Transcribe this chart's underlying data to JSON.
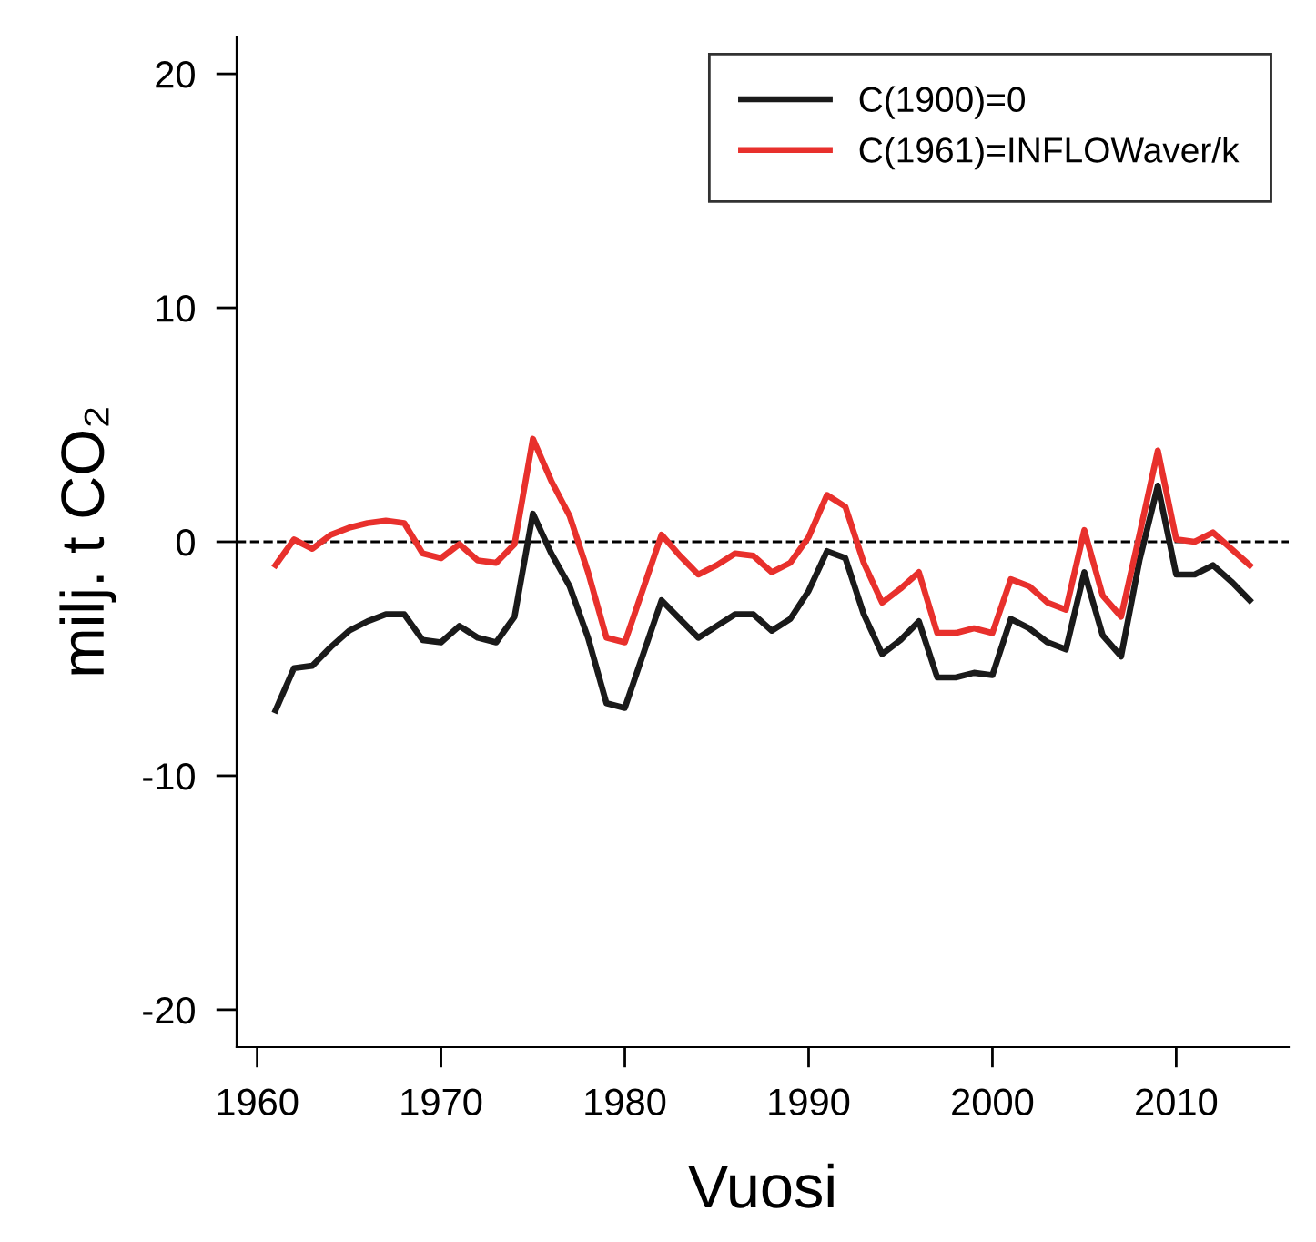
{
  "chart_data": {
    "type": "line",
    "xlabel": "Vuosi",
    "ylabel": "milj. t CO₂",
    "x": [
      1961,
      1962,
      1963,
      1964,
      1965,
      1966,
      1967,
      1968,
      1969,
      1970,
      1971,
      1972,
      1973,
      1974,
      1975,
      1976,
      1977,
      1978,
      1979,
      1980,
      1981,
      1982,
      1983,
      1984,
      1985,
      1986,
      1987,
      1988,
      1989,
      1990,
      1991,
      1992,
      1993,
      1994,
      1995,
      1996,
      1997,
      1998,
      1999,
      2000,
      2001,
      2002,
      2003,
      2004,
      2005,
      2006,
      2007,
      2008,
      2009,
      2010,
      2011,
      2012,
      2013,
      2014
    ],
    "series": [
      {
        "name": "C(1900)=0",
        "color": "#1a1a1a",
        "values": [
          -7.2,
          -5.4,
          -5.3,
          -4.5,
          -3.8,
          -3.4,
          -3.1,
          -3.1,
          -4.2,
          -4.3,
          -3.6,
          -4.1,
          -4.3,
          -3.2,
          1.2,
          -0.5,
          -1.9,
          -4.1,
          -6.9,
          -7.1,
          -4.8,
          -2.5,
          -3.3,
          -4.1,
          -3.6,
          -3.1,
          -3.1,
          -3.8,
          -3.3,
          -2.1,
          -0.4,
          -0.7,
          -3.1,
          -4.8,
          -4.2,
          -3.4,
          -5.8,
          -5.8,
          -5.6,
          -5.7,
          -3.3,
          -3.7,
          -4.3,
          -4.6,
          -1.3,
          -4.0,
          -4.9,
          -0.8,
          2.4,
          -1.4,
          -1.4,
          -1.0,
          -1.7,
          -2.5
        ]
      },
      {
        "name": "C(1961)=INFLOWaver/k",
        "color": "#e8302c",
        "values": [
          -1.0,
          0.1,
          -0.3,
          0.3,
          0.6,
          0.8,
          0.9,
          0.8,
          -0.5,
          -0.7,
          -0.1,
          -0.8,
          -0.9,
          -0.1,
          4.4,
          2.6,
          1.1,
          -1.3,
          -4.1,
          -4.3,
          -2.0,
          0.3,
          -0.6,
          -1.4,
          -1.0,
          -0.5,
          -0.6,
          -1.3,
          -0.9,
          0.2,
          2.0,
          1.5,
          -0.9,
          -2.6,
          -2.0,
          -1.3,
          -3.9,
          -3.9,
          -3.7,
          -3.9,
          -1.6,
          -1.9,
          -2.6,
          -2.9,
          0.5,
          -2.3,
          -3.2,
          0.3,
          3.9,
          0.1,
          0.0,
          0.4,
          -0.3,
          -1.0
        ]
      }
    ],
    "xlim": [
      1958.88,
      2016.12
    ],
    "xticks": [
      1960,
      1970,
      1980,
      1990,
      2000,
      2010
    ],
    "ylim": [
      -21.6,
      21.6
    ],
    "yticks": [
      -20,
      -10,
      0,
      10,
      20
    ],
    "ref_lines": [
      {
        "axis": "y",
        "value": 0,
        "color": "#000000",
        "line_style": "dashed"
      }
    ],
    "grid": false,
    "legend": "top right",
    "marker": "none",
    "line_style": "solid"
  }
}
